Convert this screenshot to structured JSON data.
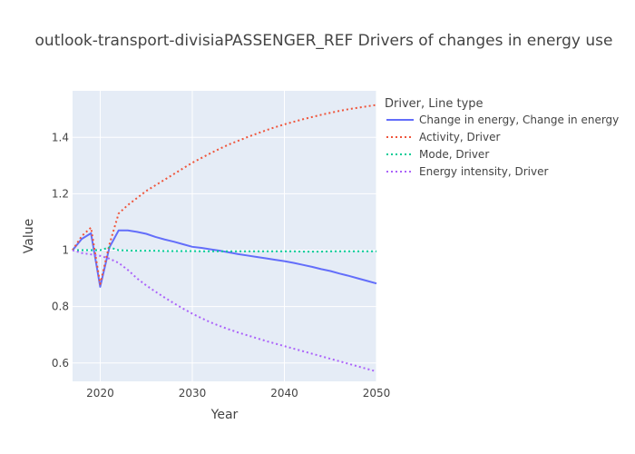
{
  "chart_data": {
    "type": "line",
    "title": "outlook-transport-divisiaPASSENGER_REF Drivers of changes in energy use",
    "xlabel": "Year",
    "ylabel": "Value",
    "xlim": [
      2017,
      2050
    ],
    "ylim": [
      0.535,
      1.565
    ],
    "x_ticks": [
      2020,
      2030,
      2040,
      2050
    ],
    "y_ticks": [
      0.6,
      0.8,
      1,
      1.2,
      1.4
    ],
    "y_tick_labels": [
      "0.6",
      "0.8",
      "1",
      "1.2",
      "1.4"
    ],
    "grid": true,
    "legend_title": "Driver, Line type",
    "legend_position": "right",
    "x": [
      2017,
      2018,
      2019,
      2020,
      2021,
      2022,
      2023,
      2024,
      2025,
      2026,
      2027,
      2028,
      2029,
      2030,
      2031,
      2032,
      2033,
      2034,
      2035,
      2036,
      2037,
      2038,
      2039,
      2040,
      2041,
      2042,
      2043,
      2044,
      2045,
      2046,
      2047,
      2048,
      2049,
      2050
    ],
    "series": [
      {
        "name": "Change in energy, Change in energy",
        "color": "#636efa",
        "dash": "solid",
        "values": [
          1.0,
          1.04,
          1.06,
          0.87,
          1.01,
          1.07,
          1.07,
          1.065,
          1.058,
          1.047,
          1.038,
          1.03,
          1.021,
          1.012,
          1.008,
          1.003,
          0.998,
          0.992,
          0.986,
          0.981,
          0.976,
          0.971,
          0.966,
          0.961,
          0.955,
          0.948,
          0.941,
          0.933,
          0.926,
          0.917,
          0.909,
          0.9,
          0.891,
          0.882
        ]
      },
      {
        "name": "Activity, Driver",
        "color": "#ef553b",
        "dash": "dot",
        "values": [
          1.0,
          1.05,
          1.08,
          0.88,
          1.02,
          1.13,
          1.16,
          1.185,
          1.21,
          1.23,
          1.25,
          1.27,
          1.29,
          1.31,
          1.327,
          1.344,
          1.36,
          1.375,
          1.388,
          1.401,
          1.413,
          1.425,
          1.436,
          1.446,
          1.455,
          1.464,
          1.472,
          1.48,
          1.487,
          1.494,
          1.5,
          1.505,
          1.51,
          1.515
        ]
      },
      {
        "name": "Mode, Driver",
        "color": "#00cc96",
        "dash": "dot",
        "values": [
          1.0,
          1.0,
          1.0,
          1.0,
          1.01,
          1.0,
          0.999,
          0.998,
          0.998,
          0.998,
          0.997,
          0.997,
          0.997,
          0.997,
          0.996,
          0.996,
          0.996,
          0.996,
          0.996,
          0.996,
          0.996,
          0.996,
          0.996,
          0.996,
          0.996,
          0.995,
          0.995,
          0.995,
          0.996,
          0.996,
          0.996,
          0.996,
          0.996,
          0.996
        ]
      },
      {
        "name": "Energy intensity, Driver",
        "color": "#ab63fa",
        "dash": "dot",
        "values": [
          1.0,
          0.99,
          0.985,
          0.98,
          0.97,
          0.955,
          0.93,
          0.9,
          0.875,
          0.853,
          0.832,
          0.812,
          0.793,
          0.775,
          0.759,
          0.744,
          0.731,
          0.719,
          0.708,
          0.698,
          0.688,
          0.678,
          0.669,
          0.66,
          0.651,
          0.642,
          0.633,
          0.624,
          0.615,
          0.606,
          0.597,
          0.588,
          0.579,
          0.57
        ]
      }
    ]
  }
}
